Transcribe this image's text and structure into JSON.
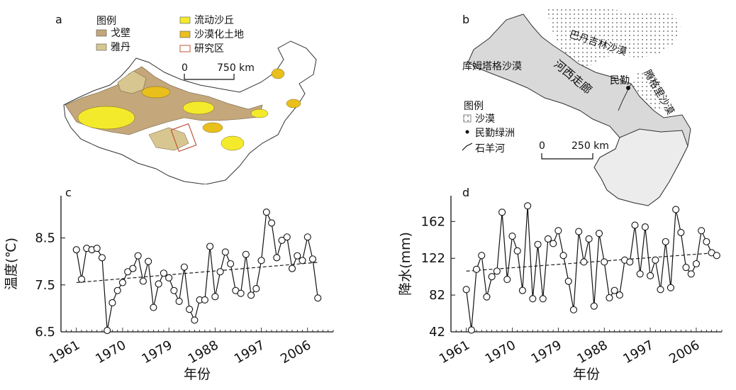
{
  "panels": {
    "a": {
      "label": "a",
      "legend_title": "图例",
      "legend": [
        {
          "name": "戈壁",
          "color": "#c4a77a"
        },
        {
          "name": "雅丹",
          "color": "#d7c690"
        },
        {
          "name": "流动沙丘",
          "color": "#f4ea2c"
        },
        {
          "name": "沙漠化土地",
          "color": "#e9bf1c"
        },
        {
          "name": "研究区",
          "color": "#c0553a"
        }
      ],
      "scale": {
        "zero": "0",
        "max": "750 km"
      }
    },
    "b": {
      "label": "b",
      "desert_labels": [
        "巴丹吉林沙漠",
        "库姆塔格沙漠",
        "腾格里沙漠"
      ],
      "corridor_label": "河西走廊",
      "place_label": "民勤",
      "legend_title": "图例",
      "legend": [
        "沙漠",
        "民勤绿洲",
        "石羊河"
      ],
      "scale": {
        "zero": "0",
        "max": "250 km"
      }
    },
    "c": {
      "label": "c"
    },
    "d": {
      "label": "d"
    }
  },
  "chart_data": [
    {
      "type": "line",
      "panel": "c",
      "xlabel": "年份",
      "ylabel": "温度(℃)",
      "x_ticks": [
        "1961",
        "1970",
        "1979",
        "1988",
        "1997",
        "2006"
      ],
      "y_ticks": [
        "6.5",
        "7.5",
        "8.5"
      ],
      "xlim": [
        1958,
        2011
      ],
      "ylim": [
        6.5,
        9.4
      ],
      "trend": [
        7.55,
        7.98
      ],
      "x": [
        1961,
        1962,
        1963,
        1964,
        1965,
        1966,
        1967,
        1968,
        1969,
        1970,
        1971,
        1972,
        1973,
        1974,
        1975,
        1976,
        1977,
        1978,
        1979,
        1980,
        1981,
        1982,
        1983,
        1984,
        1985,
        1986,
        1987,
        1988,
        1989,
        1990,
        1991,
        1992,
        1993,
        1994,
        1995,
        1996,
        1997,
        1998,
        1999,
        2000,
        2001,
        2002,
        2003,
        2004,
        2005,
        2006,
        2007,
        2008
      ],
      "y": [
        8.25,
        7.62,
        8.28,
        8.25,
        8.28,
        8.08,
        6.53,
        7.12,
        7.38,
        7.55,
        7.78,
        7.85,
        8.12,
        7.58,
        8.0,
        7.02,
        7.52,
        7.75,
        7.65,
        7.38,
        7.15,
        7.88,
        6.98,
        6.75,
        7.18,
        7.18,
        8.32,
        7.25,
        7.78,
        8.2,
        7.95,
        7.38,
        7.32,
        8.15,
        7.28,
        7.42,
        8.02,
        9.05,
        8.82,
        8.08,
        8.45,
        8.52,
        7.85,
        8.12,
        8.02,
        8.52,
        8.05,
        7.22
      ]
    },
    {
      "type": "line",
      "panel": "d",
      "xlabel": "年份",
      "ylabel": "降水(mm)",
      "x_ticks": [
        "1961",
        "1970",
        "1979",
        "1988",
        "1997",
        "2006"
      ],
      "y_ticks": [
        "42",
        "82",
        "122",
        "162"
      ],
      "xlim": [
        1958,
        2011
      ],
      "ylim": [
        42,
        190
      ],
      "trend": [
        108,
        128
      ],
      "x": [
        1961,
        1962,
        1963,
        1964,
        1965,
        1966,
        1967,
        1968,
        1969,
        1970,
        1971,
        1972,
        1973,
        1974,
        1975,
        1976,
        1977,
        1978,
        1979,
        1980,
        1981,
        1982,
        1983,
        1984,
        1985,
        1986,
        1987,
        1988,
        1989,
        1990,
        1991,
        1992,
        1993,
        1994,
        1995,
        1996,
        1997,
        1998,
        1999,
        2000,
        2001,
        2002,
        2003,
        2004,
        2005,
        2006,
        2007,
        2008,
        2009,
        2010
      ],
      "y": [
        88,
        44,
        110,
        125,
        80,
        102,
        108,
        172,
        99,
        146,
        130,
        87,
        179,
        78,
        137,
        78,
        143,
        138,
        152,
        125,
        97,
        66,
        151,
        118,
        143,
        70,
        149,
        118,
        79,
        87,
        82,
        120,
        118,
        158,
        105,
        156,
        103,
        120,
        88,
        140,
        90,
        175,
        150,
        112,
        105,
        116,
        152,
        140,
        128,
        125
      ]
    }
  ]
}
